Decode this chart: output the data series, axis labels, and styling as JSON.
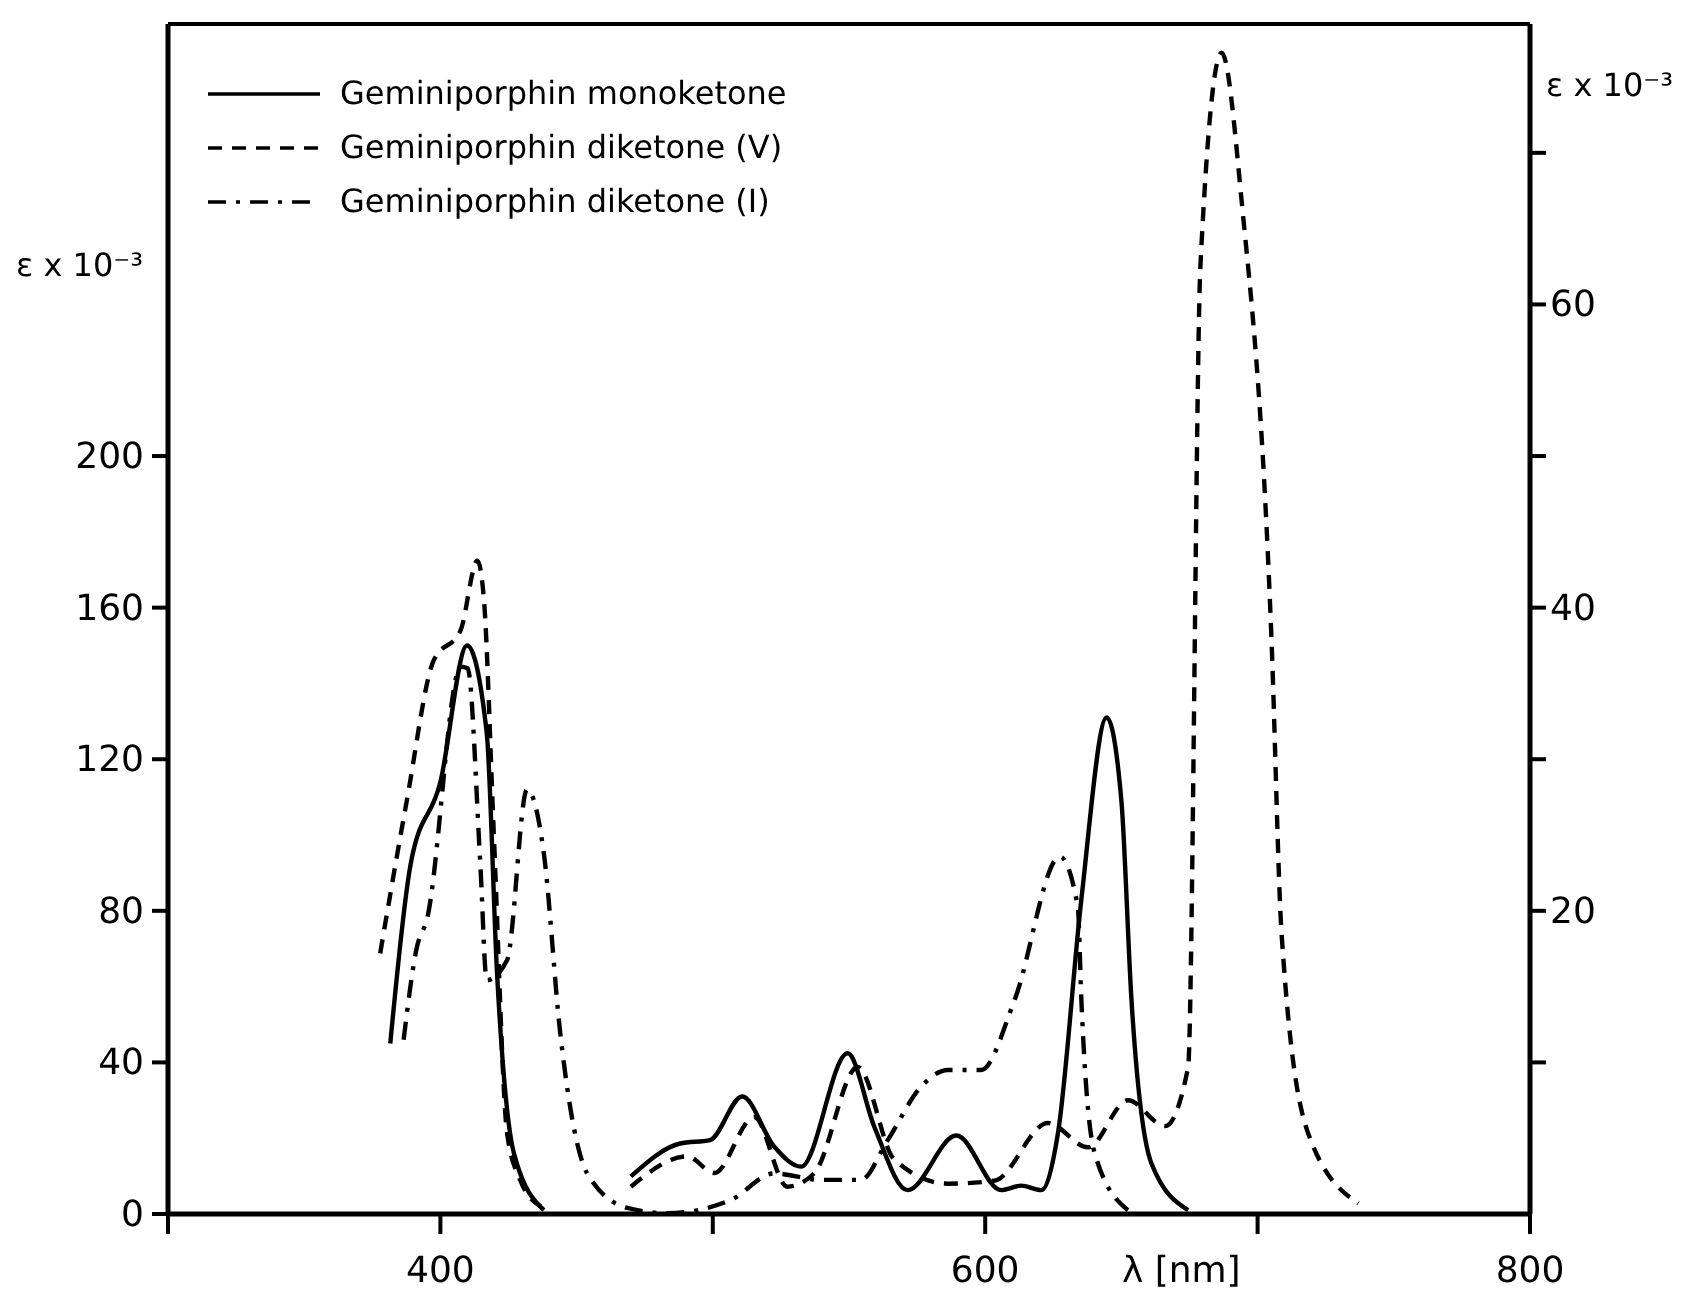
{
  "chart_data": {
    "type": "line",
    "xlabel": "λ [nm]",
    "ylabel": "ε x 10⁻³",
    "y2label": "ε x 10⁻³",
    "xlim": [
      300,
      800
    ],
    "xticks": [
      {
        "value": 300,
        "label": null
      },
      400,
      {
        "value": 500,
        "label": null
      },
      600,
      {
        "value": 700,
        "label": null
      },
      800
    ],
    "ylim": [
      0,
      314
    ],
    "yticks": [
      0,
      40,
      80,
      120,
      160,
      200
    ],
    "y2lim": [
      0,
      78.5
    ],
    "y2ticks": [
      {
        "value": 10,
        "label": null
      },
      20,
      {
        "value": 30,
        "label": null
      },
      40,
      {
        "value": 50,
        "label": null
      },
      60,
      {
        "value": 70,
        "label": null
      }
    ],
    "grid": false,
    "legend": "top left",
    "marker": "none",
    "series": [
      {
        "name": "Geminiporphin monoketone",
        "color": "#000000",
        "line_style": "solid",
        "x": [
          381.6,
          389,
          400,
          409.8,
          417,
          420.8,
          427,
          438,
          455,
          469.9,
          488,
          499,
          510.8,
          522.5,
          532.4,
          549.5,
          559.3,
          571.5,
          589.4,
          605.9,
          613.2,
          620.6,
          626.7,
          635.3,
          644.6,
          650,
          653.7,
          661,
          674.5
        ],
        "values": [
          45,
          92,
          114,
          150,
          127,
          63.5,
          16,
          1,
          null,
          9.9,
          18.6,
          19.5,
          31,
          17.8,
          12.5,
          42.4,
          23,
          6.3,
          20.7,
          6.3,
          7.5,
          6.3,
          21.3,
          83,
          131,
          109,
          56.5,
          13.4,
          1
        ]
      },
      {
        "name": "Geminiporphin diketone (V)",
        "color": "#000000",
        "line_style": "dashed",
        "axis": "y2",
        "x": [
          377.9,
          387.7,
          397.5,
          407.4,
          413.6,
          416,
          419.6,
          424.5,
          429.4,
          436.8,
          455,
          469.9,
          490.7,
          500.5,
          515.2,
          527.4,
          537.3,
          553.2,
          566.6,
          586.3,
          603.4,
          623,
          637.7,
          652.4,
          666,
          674.5,
          679,
          686.8,
          694.1,
          705.1,
          708.8,
          718.6,
          737
        ],
        "values": [
          17.2,
          27.3,
          36.5,
          38.5,
          43.1,
          40.5,
          25.1,
          5.3,
          2.2,
          0.5,
          null,
          1.8,
          3.8,
          2.7,
          6.4,
          1.8,
          2.7,
          9.7,
          3.6,
          2,
          2.2,
          6,
          4.4,
          7.5,
          5.8,
          9.7,
          62.5,
          76.6,
          66.9,
          37.9,
          18.5,
          5.3,
          0.7
        ]
      },
      {
        "name": "Geminiporphin diketone (I)",
        "color": "#000000",
        "line_style": "dashdot",
        "x": [
          386.5,
          391.4,
          395,
          407.4,
          410,
          414.7,
          417,
          424.5,
          431.8,
          438,
          444,
          453.9,
          468.6,
          483.3,
          506.6,
          522.5,
          539.7,
          554.4,
          564.2,
          576.5,
          586.3,
          598.5,
          610.8,
          627.4,
          634,
          635.3,
          640.2,
          652.4
        ],
        "values": [
          46,
          70.5,
          77.6,
          144.4,
          144,
          91.7,
          61.7,
          67,
          112,
          95,
          47.7,
          10.7,
          1.6,
          0.2,
          3.7,
          10.7,
          9,
          9,
          19.5,
          33.6,
          38,
          38,
          56.5,
          94.3,
          81,
          56.5,
          16,
          1
        ]
      }
    ]
  }
}
